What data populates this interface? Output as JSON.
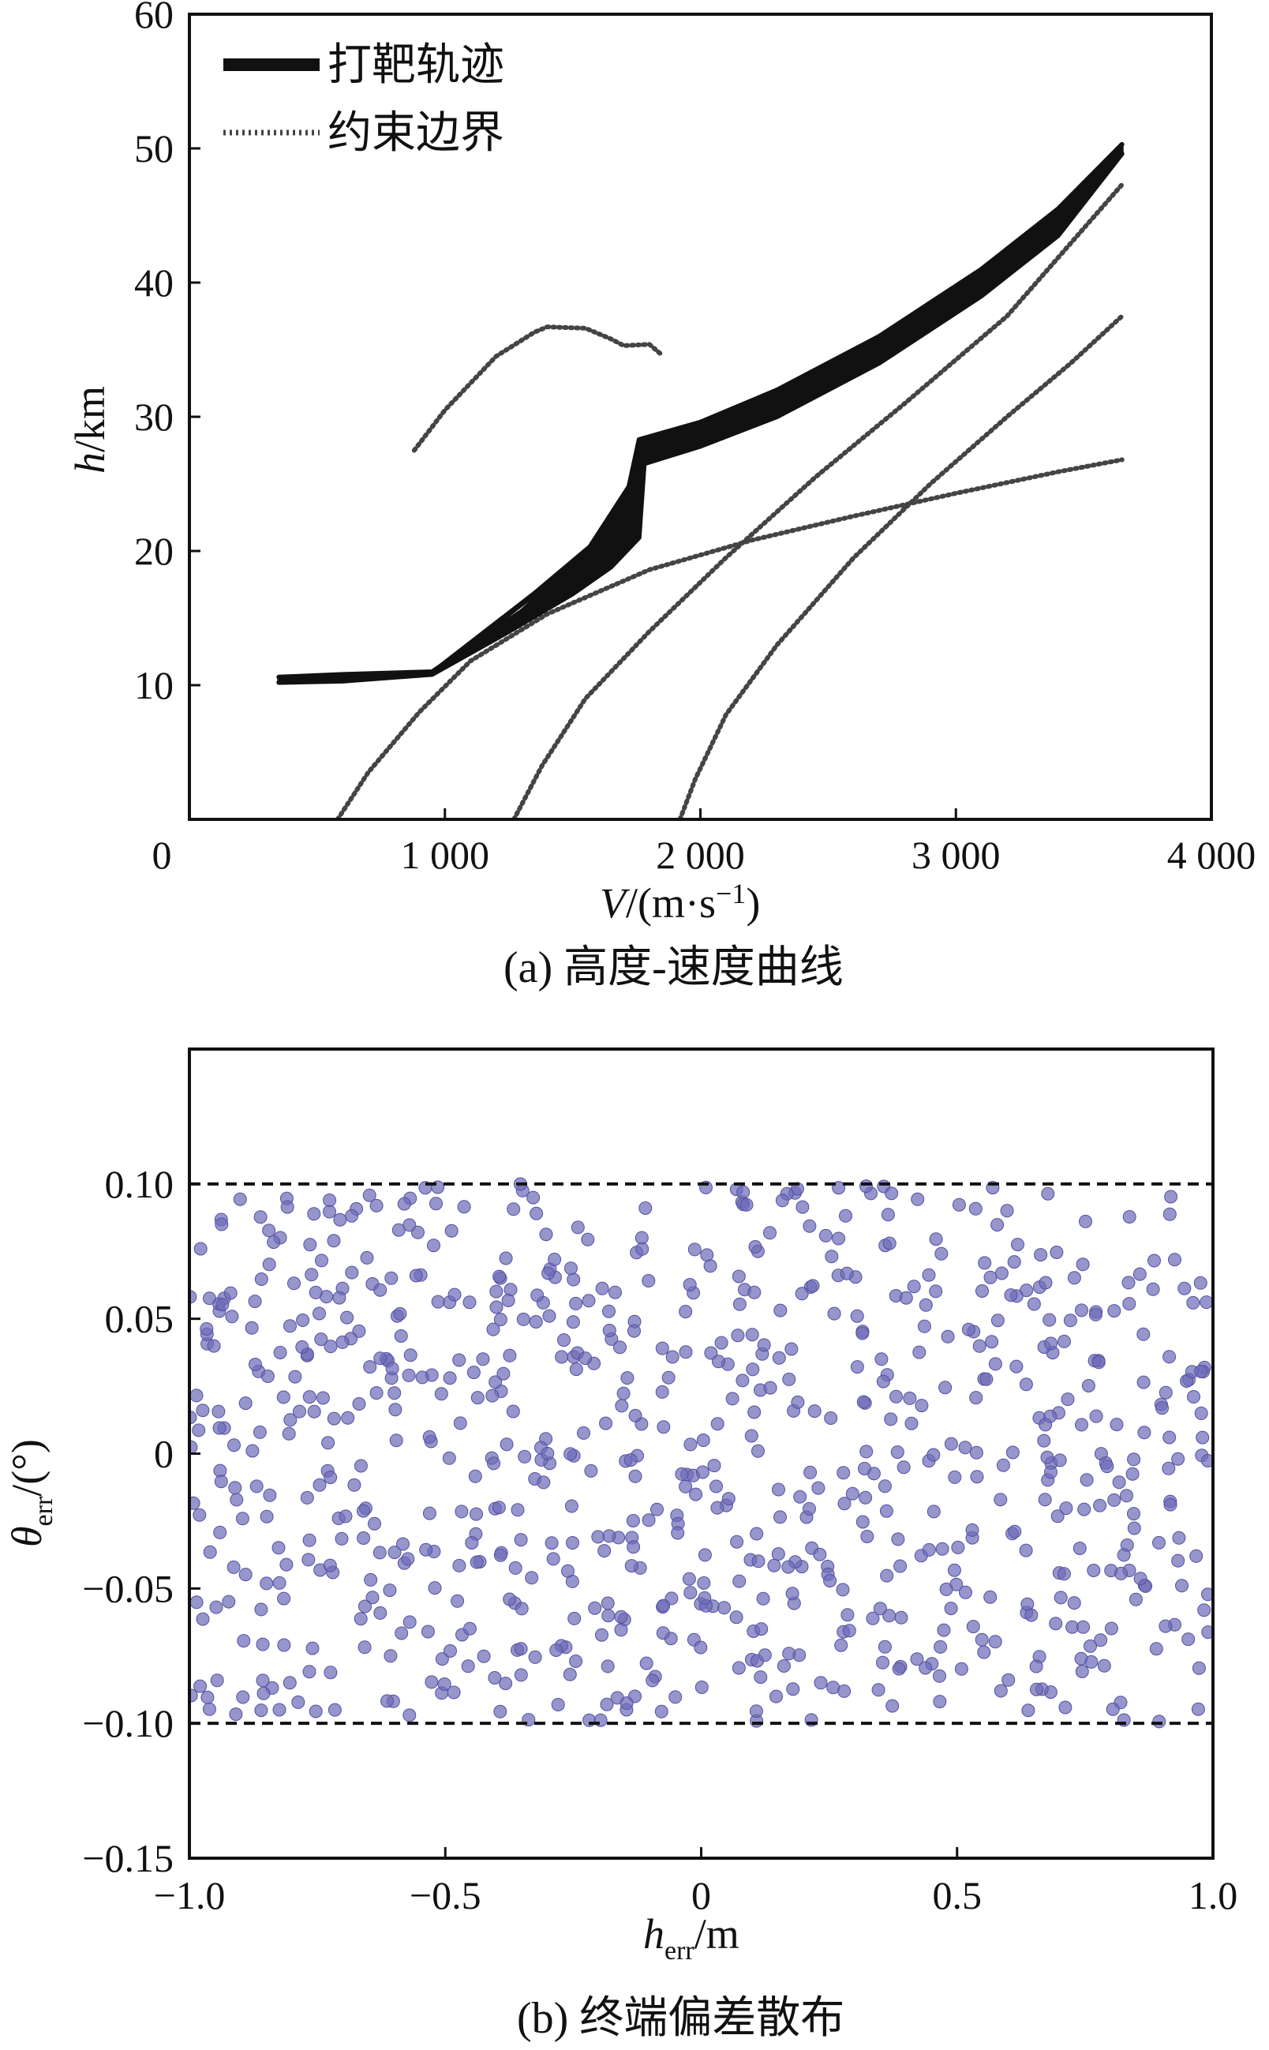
{
  "chart_data": [
    {
      "type": "line",
      "caption": "(a) 高度-速度曲线",
      "xlabel": "V/(m·s⁻¹)",
      "ylabel": "h/km",
      "xlim": [
        0,
        4000
      ],
      "ylim": [
        0,
        60
      ],
      "x_ticks": [
        "0",
        "1 000",
        "2 000",
        "3 000",
        "4 000"
      ],
      "y_ticks": [
        "10",
        "20",
        "30",
        "40",
        "50",
        "60"
      ],
      "legend": [
        {
          "label": "打靶轨迹",
          "style": "solid"
        },
        {
          "label": "约束边界",
          "style": "dotted"
        }
      ],
      "legend_position": "top-left",
      "colors": {
        "trajectory": "#111111",
        "boundary": "#444444"
      },
      "trajectory_band": {
        "upper": [
          [
            350,
            10.6
          ],
          [
            600,
            10.8
          ],
          [
            950,
            11.0
          ],
          [
            1300,
            15.5
          ],
          [
            1550,
            19.8
          ],
          [
            1720,
            24.8
          ],
          [
            1760,
            28.3
          ],
          [
            2000,
            29.6
          ],
          [
            2300,
            32.0
          ],
          [
            2700,
            36.0
          ],
          [
            3100,
            41.0
          ],
          [
            3400,
            45.5
          ],
          [
            3650,
            50.3
          ]
        ],
        "lower": [
          [
            350,
            10.2
          ],
          [
            600,
            10.3
          ],
          [
            950,
            10.8
          ],
          [
            1250,
            14.0
          ],
          [
            1500,
            16.8
          ],
          [
            1650,
            18.8
          ],
          [
            1760,
            21.0
          ],
          [
            1780,
            26.5
          ],
          [
            2000,
            27.8
          ],
          [
            2300,
            30.0
          ],
          [
            2700,
            34.0
          ],
          [
            3100,
            39.0
          ],
          [
            3400,
            43.5
          ],
          [
            3650,
            49.6
          ]
        ]
      },
      "trajectory_branches": [
        [
          [
            950,
            10.9
          ],
          [
            1300,
            14.6
          ],
          [
            1550,
            18.0
          ],
          [
            1720,
            21.8
          ],
          [
            1775,
            27.5
          ]
        ],
        [
          [
            950,
            10.9
          ],
          [
            1350,
            16.8
          ],
          [
            1600,
            20.8
          ],
          [
            1740,
            24.5
          ],
          [
            1770,
            28.0
          ]
        ]
      ],
      "boundaries": [
        [
          [
            580,
            0
          ],
          [
            700,
            3.5
          ],
          [
            900,
            8.0
          ],
          [
            1100,
            11.8
          ],
          [
            1400,
            15.3
          ],
          [
            1800,
            18.6
          ],
          [
            2200,
            20.8
          ],
          [
            2600,
            22.6
          ],
          [
            3000,
            24.3
          ],
          [
            3400,
            25.9
          ],
          [
            3650,
            26.8
          ]
        ],
        [
          [
            1270,
            0
          ],
          [
            1380,
            4.0
          ],
          [
            1550,
            9.0
          ],
          [
            1800,
            14.0
          ],
          [
            2100,
            19.5
          ],
          [
            2450,
            25.5
          ],
          [
            2800,
            31.0
          ],
          [
            3200,
            37.5
          ],
          [
            3650,
            47.3
          ]
        ],
        [
          [
            1920,
            0
          ],
          [
            1980,
            3.0
          ],
          [
            2100,
            7.8
          ],
          [
            2300,
            13.0
          ],
          [
            2600,
            19.5
          ],
          [
            2900,
            25.0
          ],
          [
            3200,
            30.0
          ],
          [
            3450,
            34.0
          ],
          [
            3650,
            37.5
          ]
        ],
        [
          [
            880,
            27.5
          ],
          [
            1000,
            30.5
          ],
          [
            1100,
            32.5
          ],
          [
            1200,
            34.5
          ],
          [
            1350,
            36.3
          ],
          [
            1400,
            36.7
          ],
          [
            1550,
            36.6
          ],
          [
            1650,
            35.8
          ],
          [
            1700,
            35.3
          ],
          [
            1800,
            35.4
          ],
          [
            1850,
            34.6
          ]
        ]
      ]
    },
    {
      "type": "scatter",
      "caption": "(b) 终端偏差散布",
      "xlabel": "h_err/m",
      "ylabel": "θ_err/(°)",
      "xlim": [
        -1.0,
        1.0
      ],
      "ylim": [
        -0.15,
        0.15
      ],
      "x_ticks": [
        "−1.0",
        "−0.5",
        "0",
        "0.5",
        "1.0"
      ],
      "y_ticks": [
        "0.10",
        "0.05",
        "0",
        "−0.05",
        "−0.10",
        "−0.15"
      ],
      "reference_lines": [
        0.1,
        -0.1
      ],
      "colors": {
        "point": "#6e6cb8",
        "point_edge": "#5452a0",
        "reference": "#111111"
      },
      "point_count": 800,
      "x_range": [
        -1.0,
        1.0
      ],
      "y_range": [
        -0.1,
        0.1
      ]
    }
  ]
}
